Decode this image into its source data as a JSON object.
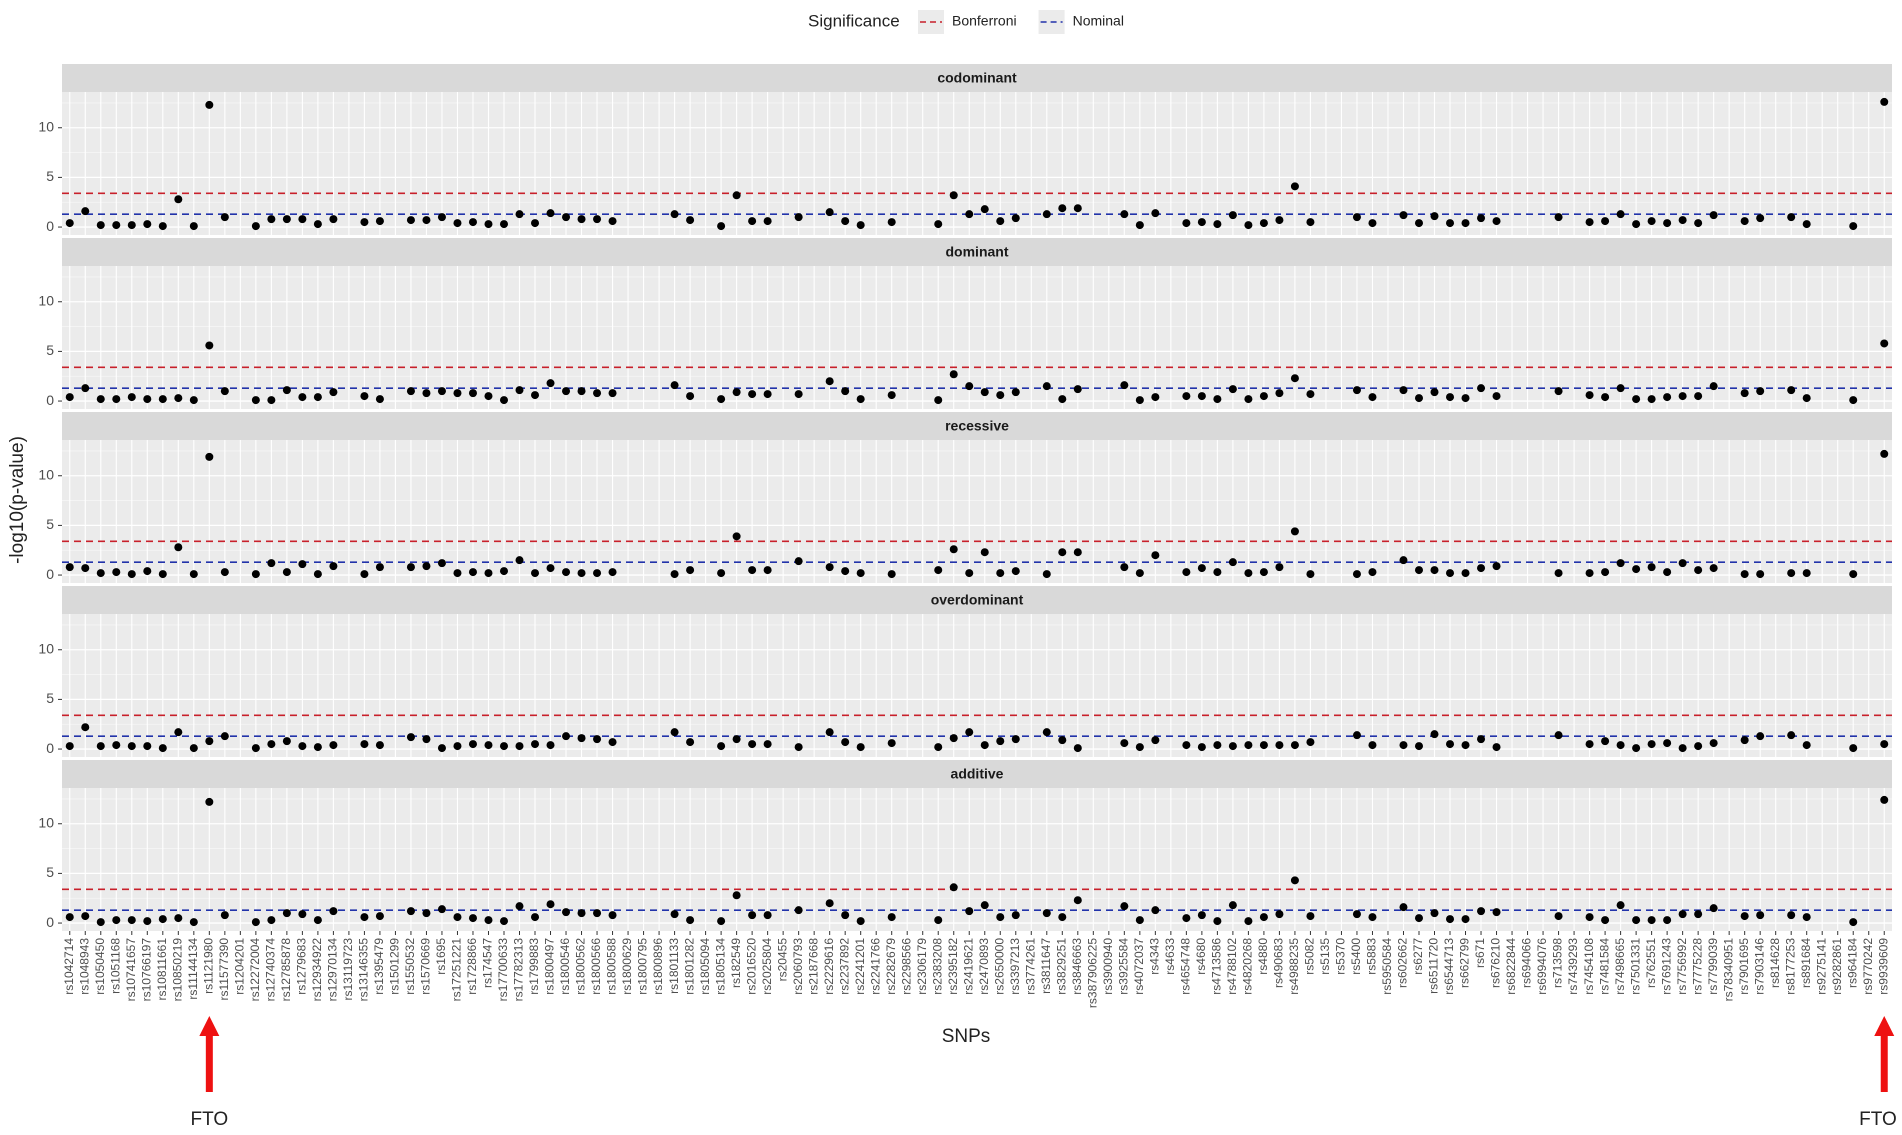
{
  "chart_data": {
    "type": "faceted-dot",
    "legend_title": "Significance",
    "x_label": "SNPs",
    "y_label": "-log10(p-value)",
    "ylim": [
      -0.8,
      13.6
    ],
    "yticks": [
      0,
      5,
      10
    ],
    "grid": true,
    "point_color": "#000000",
    "reference_lines": [
      {
        "name": "Bonferroni",
        "color": "#c8202b",
        "value": 3.4
      },
      {
        "name": "Nominal",
        "color": "#2233aa",
        "value": 1.3
      }
    ],
    "annotations": [
      "FTO",
      "FTO"
    ],
    "categories": [
      "rs1042714",
      "rs1048943",
      "rs1050450",
      "rs1051168",
      "rs10741657",
      "rs10766197",
      "rs10811661",
      "rs10850219",
      "rs11144134",
      "rs1121980",
      "rs11577390",
      "rs1204201",
      "rs12272004",
      "rs12740374",
      "rs12785878",
      "rs1279683",
      "rs12934922",
      "rs12970134",
      "rs13119723",
      "rs13146355",
      "rs1395479",
      "rs1501299",
      "rs1550532",
      "rs1570669",
      "rs1695",
      "rs17251221",
      "rs1728866",
      "rs174547",
      "rs17700633",
      "rs17782313",
      "rs1799883",
      "rs1800497",
      "rs1800546",
      "rs1800562",
      "rs1800566",
      "rs1800588",
      "rs1800629",
      "rs1800795",
      "rs1800896",
      "rs1801133",
      "rs1801282",
      "rs1805094",
      "rs1805134",
      "rs182549",
      "rs2016520",
      "rs2025804",
      "rs20455",
      "rs2060793",
      "rs2187668",
      "rs2229616",
      "rs2237892",
      "rs2241201",
      "rs2241766",
      "rs2282679",
      "rs2298566",
      "rs2306179",
      "rs2383208",
      "rs2395182",
      "rs2419621",
      "rs2470893",
      "rs2650000",
      "rs3397213",
      "rs3774261",
      "rs3811647",
      "rs3829251",
      "rs3846663",
      "rs387906225",
      "rs3900940",
      "rs3925584",
      "rs4072037",
      "rs4343",
      "rs4633",
      "rs4654748",
      "rs4680",
      "rs4713586",
      "rs4788102",
      "rs4820268",
      "rs4880",
      "rs490683",
      "rs4988235",
      "rs5082",
      "rs5135",
      "rs5370",
      "rs5400",
      "rs5883",
      "rs5950584",
      "rs602662",
      "rs6277",
      "rs6511720",
      "rs6544713",
      "rs662799",
      "rs671",
      "rs676210",
      "rs6822844",
      "rs694066",
      "rs6994076",
      "rs713598",
      "rs7439293",
      "rs7454108",
      "rs7481584",
      "rs7498665",
      "rs7501331",
      "rs762551",
      "rs7691243",
      "rs7756992",
      "rs7775228",
      "rs7799039",
      "rs78340951",
      "rs7901695",
      "rs7903146",
      "rs814628",
      "rs8177253",
      "rs891684",
      "rs9275141",
      "rs9282861",
      "rs964184",
      "rs9770242",
      "rs9939609"
    ],
    "panels": [
      {
        "name": "codominant",
        "values": [
          0.4,
          1.6,
          0.2,
          0.2,
          0.2,
          0.3,
          0.1,
          2.8,
          0.1,
          12.3,
          1.0,
          null,
          0.1,
          0.8,
          0.8,
          0.8,
          0.3,
          0.8,
          null,
          0.5,
          0.6,
          null,
          0.7,
          0.7,
          1.0,
          0.4,
          0.5,
          0.3,
          0.3,
          1.3,
          0.4,
          1.4,
          1.0,
          0.8,
          0.8,
          0.6,
          null,
          null,
          null,
          1.3,
          0.7,
          null,
          0.1,
          3.2,
          0.6,
          0.6,
          null,
          1.0,
          null,
          1.5,
          0.6,
          0.2,
          null,
          0.5,
          null,
          null,
          0.3,
          3.2,
          1.3,
          1.8,
          0.6,
          0.9,
          null,
          1.3,
          1.9,
          1.9,
          null,
          null,
          1.3,
          0.2,
          1.4,
          null,
          0.4,
          0.5,
          0.3,
          1.2,
          0.2,
          0.4,
          0.7,
          4.1,
          0.5,
          null,
          null,
          1.0,
          0.4,
          null,
          1.2,
          0.4,
          1.1,
          0.4,
          0.4,
          0.9,
          0.6,
          null,
          null,
          null,
          1.0,
          null,
          0.5,
          0.6,
          1.3,
          0.3,
          0.6,
          0.4,
          0.7,
          0.4,
          1.2,
          null,
          0.6,
          0.9,
          null,
          1.0,
          0.3,
          null,
          null,
          0.1,
          null,
          12.6
        ]
      },
      {
        "name": "dominant",
        "values": [
          0.4,
          1.3,
          0.2,
          0.2,
          0.4,
          0.2,
          0.2,
          0.3,
          0.1,
          5.6,
          1.0,
          null,
          0.1,
          0.1,
          1.1,
          0.4,
          0.4,
          0.9,
          null,
          0.5,
          0.2,
          null,
          1.0,
          0.8,
          1.0,
          0.8,
          0.8,
          0.5,
          0.1,
          1.1,
          0.6,
          1.8,
          1.0,
          1.0,
          0.8,
          0.8,
          null,
          null,
          null,
          1.6,
          0.5,
          null,
          0.2,
          0.9,
          0.7,
          0.7,
          null,
          0.7,
          null,
          2.0,
          1.0,
          0.2,
          null,
          0.6,
          null,
          null,
          0.1,
          2.7,
          1.5,
          0.9,
          0.6,
          0.9,
          null,
          1.5,
          0.2,
          1.2,
          null,
          null,
          1.6,
          0.1,
          0.4,
          null,
          0.5,
          0.5,
          0.2,
          1.2,
          0.2,
          0.5,
          0.8,
          2.3,
          0.7,
          null,
          null,
          1.1,
          0.4,
          null,
          1.1,
          0.3,
          0.9,
          0.4,
          0.3,
          1.3,
          0.5,
          null,
          null,
          null,
          1.0,
          null,
          0.6,
          0.4,
          1.3,
          0.2,
          0.2,
          0.4,
          0.5,
          0.5,
          1.5,
          null,
          0.8,
          1.0,
          null,
          1.1,
          0.3,
          null,
          null,
          0.1,
          null,
          5.8
        ]
      },
      {
        "name": "recessive",
        "values": [
          0.8,
          0.7,
          0.2,
          0.3,
          0.1,
          0.4,
          0.1,
          2.8,
          0.1,
          11.9,
          0.3,
          null,
          0.1,
          1.2,
          0.3,
          1.1,
          0.1,
          0.9,
          null,
          0.1,
          0.8,
          null,
          0.8,
          0.9,
          1.2,
          0.2,
          0.3,
          0.2,
          0.4,
          1.5,
          0.2,
          0.7,
          0.3,
          0.2,
          0.2,
          0.3,
          null,
          null,
          null,
          0.1,
          0.5,
          null,
          0.2,
          3.9,
          0.5,
          0.5,
          null,
          1.4,
          null,
          0.8,
          0.4,
          0.2,
          null,
          0.1,
          null,
          null,
          0.5,
          2.6,
          0.2,
          2.3,
          0.2,
          0.4,
          null,
          0.1,
          2.3,
          2.3,
          null,
          null,
          0.8,
          0.2,
          2.0,
          null,
          0.3,
          0.7,
          0.3,
          1.3,
          0.2,
          0.3,
          0.8,
          4.4,
          0.1,
          null,
          null,
          0.1,
          0.3,
          null,
          1.5,
          0.5,
          0.5,
          0.2,
          0.2,
          0.7,
          0.9,
          null,
          null,
          null,
          0.2,
          null,
          0.2,
          0.3,
          1.2,
          0.6,
          0.8,
          0.3,
          1.2,
          0.5,
          0.7,
          null,
          0.1,
          0.1,
          null,
          0.2,
          0.2,
          null,
          null,
          0.1,
          null,
          12.2
        ]
      },
      {
        "name": "overdominant",
        "values": [
          0.3,
          2.2,
          0.3,
          0.4,
          0.3,
          0.3,
          0.1,
          1.7,
          0.1,
          0.8,
          1.3,
          null,
          0.1,
          0.5,
          0.8,
          0.3,
          0.2,
          0.4,
          null,
          0.5,
          0.4,
          null,
          1.2,
          1.0,
          0.1,
          0.3,
          0.5,
          0.4,
          0.3,
          0.3,
          0.5,
          0.4,
          1.3,
          1.1,
          1.0,
          0.7,
          null,
          null,
          null,
          1.7,
          0.7,
          null,
          0.3,
          1.0,
          0.5,
          0.5,
          null,
          0.2,
          null,
          1.7,
          0.7,
          0.2,
          null,
          0.6,
          null,
          null,
          0.2,
          1.1,
          1.7,
          0.4,
          0.8,
          1.0,
          null,
          1.7,
          0.9,
          0.1,
          null,
          null,
          0.6,
          0.2,
          0.9,
          null,
          0.4,
          0.2,
          0.4,
          0.3,
          0.4,
          0.4,
          0.4,
          0.4,
          0.7,
          null,
          null,
          1.4,
          0.4,
          null,
          0.4,
          0.3,
          1.5,
          0.5,
          0.4,
          1.0,
          0.2,
          null,
          null,
          null,
          1.4,
          null,
          0.5,
          0.8,
          0.4,
          0.1,
          0.5,
          0.6,
          0.1,
          0.3,
          0.6,
          null,
          0.9,
          1.3,
          null,
          1.4,
          0.4,
          null,
          null,
          0.1,
          null,
          0.5
        ]
      },
      {
        "name": "additive",
        "values": [
          0.6,
          0.7,
          0.1,
          0.3,
          0.3,
          0.2,
          0.4,
          0.5,
          0.1,
          12.2,
          0.8,
          null,
          0.1,
          0.3,
          1.0,
          0.9,
          0.3,
          1.2,
          null,
          0.6,
          0.7,
          null,
          1.2,
          1.0,
          1.4,
          0.6,
          0.5,
          0.3,
          0.2,
          1.7,
          0.6,
          1.9,
          1.1,
          1.0,
          1.0,
          0.8,
          null,
          null,
          null,
          0.9,
          0.3,
          null,
          0.2,
          2.8,
          0.8,
          0.8,
          null,
          1.3,
          null,
          2.0,
          0.8,
          0.2,
          null,
          0.6,
          null,
          null,
          0.3,
          3.6,
          1.2,
          1.8,
          0.6,
          0.8,
          null,
          1.0,
          0.6,
          2.3,
          null,
          null,
          1.7,
          0.3,
          1.3,
          null,
          0.5,
          0.8,
          0.2,
          1.8,
          0.2,
          0.6,
          0.9,
          4.3,
          0.7,
          null,
          null,
          0.9,
          0.6,
          null,
          1.6,
          0.5,
          1.0,
          0.4,
          0.4,
          1.2,
          1.1,
          null,
          null,
          null,
          0.7,
          null,
          0.6,
          0.3,
          1.8,
          0.3,
          0.3,
          0.3,
          0.9,
          0.9,
          1.5,
          null,
          0.7,
          0.8,
          null,
          0.8,
          0.6,
          null,
          null,
          0.1,
          null,
          12.4
        ]
      }
    ]
  }
}
